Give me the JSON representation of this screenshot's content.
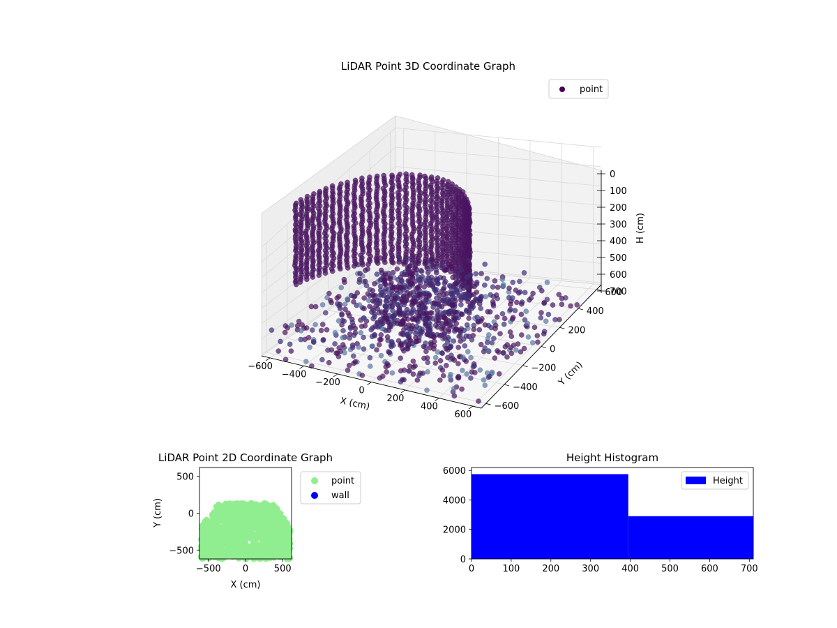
{
  "chart_data": [
    {
      "type": "scatter",
      "title": "LiDAR Point 3D Coordinate Graph",
      "xlabel": "X (cm)",
      "ylabel": "Y (cm)",
      "zlabel": "H (cm)",
      "xlim": [
        -650,
        650
      ],
      "ylim": [
        -650,
        650
      ],
      "zlim": [
        0,
        710
      ],
      "z_inverted": true,
      "grid": true,
      "legend": {
        "placement": "top-right",
        "entries": [
          "point"
        ]
      },
      "x_ticks": [
        "−600",
        "−400",
        "−200",
        "0",
        "200",
        "400",
        "600"
      ],
      "y_ticks": [
        "−600",
        "−400",
        "−200",
        "0",
        "200",
        "400",
        "600"
      ],
      "z_ticks": [
        "0",
        "100",
        "200",
        "300",
        "400",
        "500",
        "600",
        "700"
      ],
      "series": [
        {
          "name": "point",
          "color": "#440154"
        }
      ]
    },
    {
      "type": "scatter",
      "title": "LiDAR Point 2D Coordinate Graph",
      "xlabel": "X (cm)",
      "ylabel": "Y (cm)",
      "xlim": [
        -620,
        620
      ],
      "ylim": [
        -620,
        620
      ],
      "x_ticks": [
        "−500",
        "0",
        "500"
      ],
      "y_ticks": [
        "−500",
        "0",
        "500"
      ],
      "legend": {
        "placement": "outside-right",
        "entries": [
          "point",
          "wall"
        ]
      },
      "series": [
        {
          "name": "point",
          "color": "#90ee90"
        },
        {
          "name": "wall",
          "color": "#0000ff",
          "points": []
        }
      ]
    },
    {
      "type": "bar",
      "title": "Height Histogram",
      "xlim": [
        0,
        710
      ],
      "ylim": [
        0,
        6200
      ],
      "x_ticks": [
        "0",
        "100",
        "200",
        "300",
        "400",
        "500",
        "600",
        "700"
      ],
      "y_ticks": [
        "0",
        "2000",
        "4000",
        "6000"
      ],
      "bins": [
        {
          "start": 0,
          "end": 395,
          "count": 5750
        },
        {
          "start": 395,
          "end": 710,
          "count": 2900
        }
      ],
      "color": "#0000ff",
      "legend": {
        "placement": "top-right",
        "entries": [
          "Height"
        ]
      },
      "series": [
        {
          "name": "Height",
          "color": "#0000ff"
        }
      ]
    }
  ]
}
